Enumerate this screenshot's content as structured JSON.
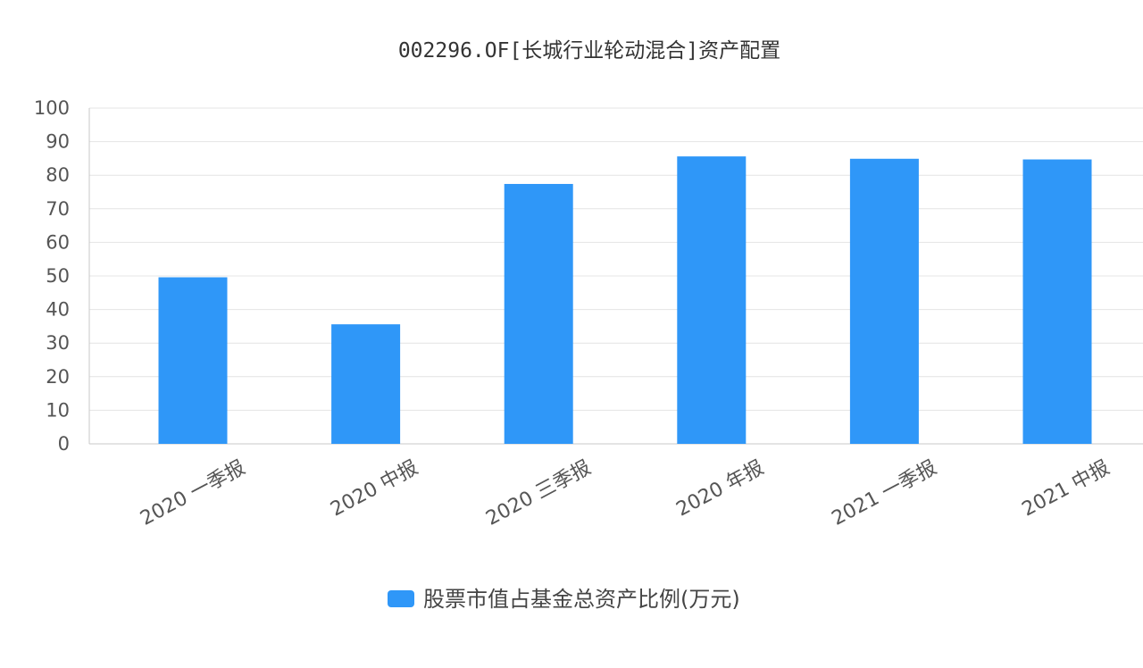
{
  "chart_data": {
    "type": "bar",
    "title": "002296.OF[长城行业轮动混合]资产配置",
    "categories": [
      "2020 一季报",
      "2020 中报",
      "2020 三季报",
      "2020 年报",
      "2021 一季报",
      "2021 中报"
    ],
    "series": [
      {
        "name": "股票市值占基金总资产比例(万元)",
        "values": [
          49.6,
          35.6,
          77.4,
          85.6,
          84.9,
          84.7
        ]
      }
    ],
    "yticks": [
      "0",
      "10",
      "20",
      "30",
      "40",
      "50",
      "60",
      "70",
      "80",
      "90",
      "100"
    ],
    "ylim": [
      0,
      100
    ],
    "grid": true,
    "legend_position": "bottom",
    "colors": {
      "bar": "#2f97f8"
    }
  }
}
